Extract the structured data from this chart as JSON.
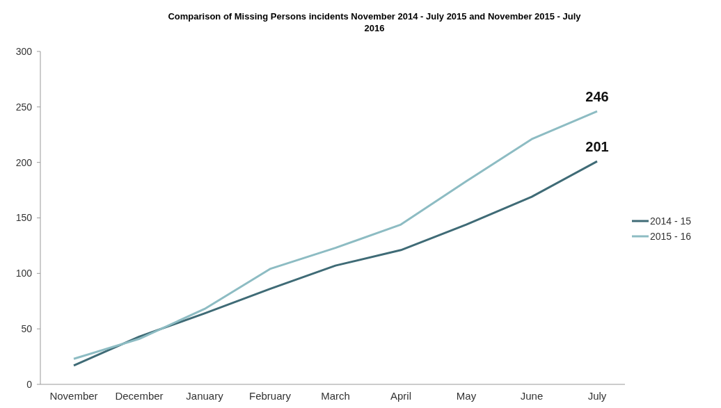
{
  "chart_data": {
    "type": "line",
    "title": "Comparison of Missing Persons incidents November 2014 - July 2015 and November 2015 - July 2016",
    "categories": [
      "November",
      "December",
      "January",
      "February",
      "March",
      "April",
      "May",
      "June",
      "July"
    ],
    "series": [
      {
        "name": "2014 - 15",
        "color": "#3f6b76",
        "values": [
          17,
          43,
          64,
          86,
          107,
          121,
          144,
          169,
          201
        ],
        "value_labels": [
          null,
          null,
          null,
          null,
          null,
          null,
          null,
          null,
          "201"
        ]
      },
      {
        "name": "2015 - 16",
        "color": "#8dbcc3",
        "values": [
          23,
          41,
          68,
          104,
          123,
          144,
          183,
          221,
          246
        ],
        "value_labels": [
          null,
          null,
          null,
          null,
          null,
          null,
          null,
          null,
          "246"
        ]
      }
    ],
    "ylim": [
      0,
      300
    ],
    "yticks": [
      0,
      50,
      100,
      150,
      200,
      250,
      300
    ],
    "grid": false,
    "legend": "right",
    "line_style": "solid",
    "marker": "none"
  }
}
